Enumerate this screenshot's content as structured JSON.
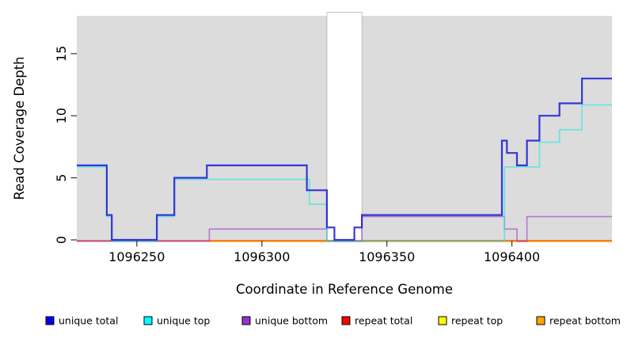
{
  "chart_data": {
    "type": "line",
    "subtype": "step-coverage",
    "title": "",
    "xlabel": "Coordinate in Reference Genome",
    "ylabel": "Read Coverage Depth",
    "xlim": [
      1096226,
      1096440
    ],
    "ylim": [
      0,
      18
    ],
    "grid": false,
    "legend_position": "bottom",
    "x_tick_labels": [
      "1096250",
      "1096300",
      "1096350",
      "1096400"
    ],
    "x_ticks": [
      1096250,
      1096300,
      1096350,
      1096400
    ],
    "y_tick_labels": [
      "0",
      "5",
      "10",
      "15"
    ],
    "y_ticks": [
      0,
      5,
      10,
      15
    ],
    "plot_background_color": "#dcdcdc",
    "masked_region": {
      "x_start": 1096326,
      "x_end": 1096340,
      "color": "#ffffff"
    },
    "series": [
      {
        "name": "repeat top",
        "color": "#FFE800",
        "opacity": 1,
        "width": 1.4,
        "offset": 1,
        "points": [
          [
            1096226,
            0
          ],
          [
            1096440,
            0
          ]
        ]
      },
      {
        "name": "repeat total",
        "color": "#E02040",
        "opacity": 0.75,
        "width": 1.4,
        "offset": 1,
        "points": [
          [
            1096226,
            0
          ],
          [
            1096440,
            0
          ]
        ]
      },
      {
        "name": "repeat bottom",
        "color": "#FF9D00",
        "opacity": 1,
        "width": 1.6,
        "offset": 2,
        "points": [
          [
            1096279,
            0
          ],
          [
            1096440,
            0
          ]
        ]
      },
      {
        "name": "unique bottom",
        "color": "#9932CC",
        "opacity": 0.6,
        "width": 1.6,
        "offset": 2,
        "points": [
          [
            1096226,
            0
          ],
          [
            1096279,
            1
          ],
          [
            1096326,
            0
          ],
          [
            1096340,
            2
          ],
          [
            1096397,
            1
          ],
          [
            1096402,
            0
          ],
          [
            1096406,
            2
          ],
          [
            1096440,
            2
          ]
        ]
      },
      {
        "name": "unique top",
        "color": "#30E8E0",
        "opacity": 0.66,
        "width": 1.8,
        "offset": 2,
        "points": [
          [
            1096226,
            6
          ],
          [
            1096238,
            2
          ],
          [
            1096240,
            0
          ],
          [
            1096258,
            2
          ],
          [
            1096265,
            5
          ],
          [
            1096319,
            3
          ],
          [
            1096326,
            0
          ],
          [
            1096397,
            6
          ],
          [
            1096411,
            8
          ],
          [
            1096419,
            9
          ],
          [
            1096428,
            11
          ],
          [
            1096440,
            11
          ]
        ]
      },
      {
        "name": "unique total",
        "color": "#2222D8",
        "opacity": 0.9,
        "width": 2.2,
        "offset": 0,
        "points": [
          [
            1096226,
            6
          ],
          [
            1096238,
            2
          ],
          [
            1096240,
            0
          ],
          [
            1096258,
            2
          ],
          [
            1096265,
            5
          ],
          [
            1096278,
            6
          ],
          [
            1096318,
            4
          ],
          [
            1096326,
            1
          ],
          [
            1096329,
            0
          ],
          [
            1096337,
            1
          ],
          [
            1096340,
            2
          ],
          [
            1096396,
            8
          ],
          [
            1096398,
            7
          ],
          [
            1096402,
            6
          ],
          [
            1096406,
            8
          ],
          [
            1096411,
            10
          ],
          [
            1096419,
            11
          ],
          [
            1096428,
            13
          ],
          [
            1096440,
            13
          ]
        ]
      }
    ],
    "legend": [
      {
        "label": "unique total",
        "color": "#0000EE"
      },
      {
        "label": "unique top",
        "color": "#00FFFF"
      },
      {
        "label": "unique bottom",
        "color": "#9932CC"
      },
      {
        "label": "repeat total",
        "color": "#FF0000"
      },
      {
        "label": "repeat top",
        "color": "#FFFF00"
      },
      {
        "label": "repeat bottom",
        "color": "#FFA500"
      }
    ]
  }
}
